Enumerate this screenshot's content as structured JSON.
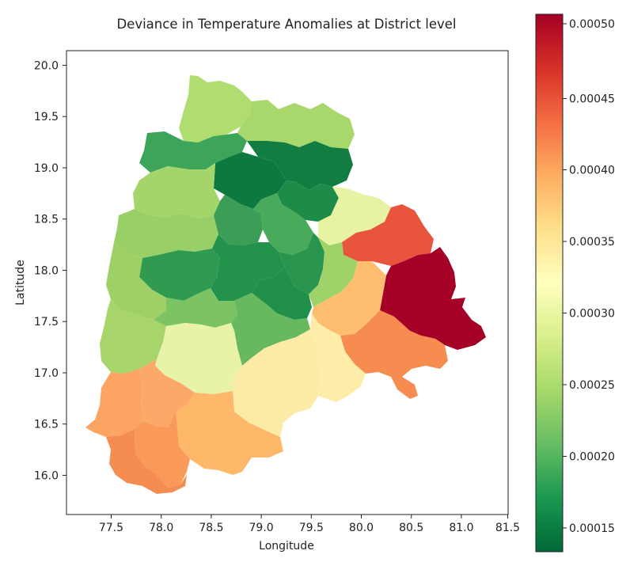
{
  "title": "Deviance in Temperature Anomalies at District level",
  "xlabel": "Longitude",
  "ylabel": "Latitude",
  "x_ticks": [
    "77.5",
    "78.0",
    "78.5",
    "79.0",
    "79.5",
    "80.0",
    "80.5",
    "81.0",
    "81.5"
  ],
  "y_ticks": [
    "20.0",
    "19.5",
    "19.0",
    "18.5",
    "18.0",
    "17.5",
    "17.0",
    "16.5",
    "16.0"
  ],
  "colorbar_ticks": [
    "0.00050",
    "0.00045",
    "0.00040",
    "0.00035",
    "0.00030",
    "0.00025",
    "0.00020",
    "0.00015"
  ],
  "colormap": "RdYlGn_r",
  "chart_data": {
    "type": "heatmap",
    "title": "Deviance in Temperature Anomalies at District level",
    "xlabel": "Longitude",
    "ylabel": "Latitude",
    "xlim": [
      77.05,
      81.3
    ],
    "ylim": [
      15.62,
      20.1
    ],
    "colorbar_range": [
      0.000135,
      0.000508
    ]
  }
}
